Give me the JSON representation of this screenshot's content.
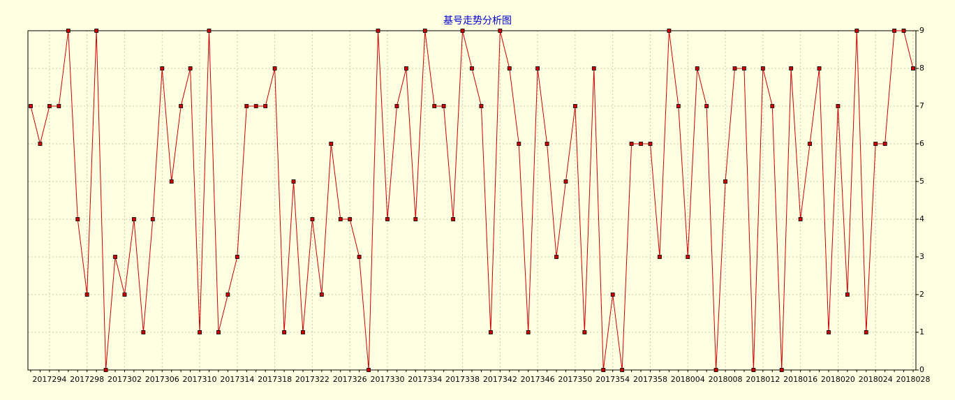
{
  "chart_data": {
    "type": "line",
    "title": "基号走势分析图",
    "categories": [
      null,
      null,
      "2017294",
      null,
      null,
      null,
      "2017298",
      null,
      null,
      null,
      "2017302",
      null,
      null,
      null,
      "2017306",
      null,
      null,
      null,
      "2017310",
      null,
      null,
      null,
      "2017314",
      null,
      null,
      null,
      "2017318",
      null,
      null,
      null,
      "2017322",
      null,
      null,
      null,
      "2017326",
      null,
      null,
      null,
      "2017330",
      null,
      null,
      null,
      "2017334",
      null,
      null,
      null,
      "2017338",
      null,
      null,
      null,
      "2017342",
      null,
      null,
      null,
      "2017346",
      null,
      null,
      null,
      "2017350",
      null,
      null,
      null,
      "2017354",
      null,
      null,
      null,
      "2017358",
      null,
      null,
      null,
      "2018004",
      null,
      null,
      null,
      "2018008",
      null,
      null,
      null,
      "2018012",
      null,
      null,
      null,
      "2018016",
      null,
      null,
      null,
      "2018020",
      null,
      null,
      null,
      "2018024",
      null,
      null,
      null,
      "2018028"
    ],
    "series": [
      {
        "color": "#cc0000",
        "values": [
          7,
          6,
          7,
          7,
          9,
          4,
          2,
          9,
          0,
          3,
          2,
          4,
          1,
          4,
          8,
          5,
          7,
          8,
          1,
          9,
          1,
          2,
          3,
          7,
          7,
          7,
          8,
          1,
          5,
          1,
          4,
          2,
          6,
          4,
          4,
          3,
          0,
          9,
          4,
          7,
          8,
          4,
          9,
          7,
          7,
          4,
          9,
          8,
          7,
          1,
          9,
          8,
          6,
          1,
          8,
          6,
          3,
          5,
          7,
          1,
          8,
          0,
          2,
          0,
          6,
          6,
          6,
          3,
          9,
          7,
          3,
          8,
          7,
          0,
          5,
          8,
          8,
          0,
          8,
          7,
          0,
          8,
          4,
          6,
          8,
          1,
          7,
          2,
          9,
          1,
          6,
          6,
          9,
          9,
          8
        ]
      }
    ],
    "ylim": [
      0,
      9
    ],
    "yticks": [
      0,
      1,
      2,
      3,
      4,
      5,
      6,
      7,
      8,
      9
    ],
    "grid": true
  }
}
